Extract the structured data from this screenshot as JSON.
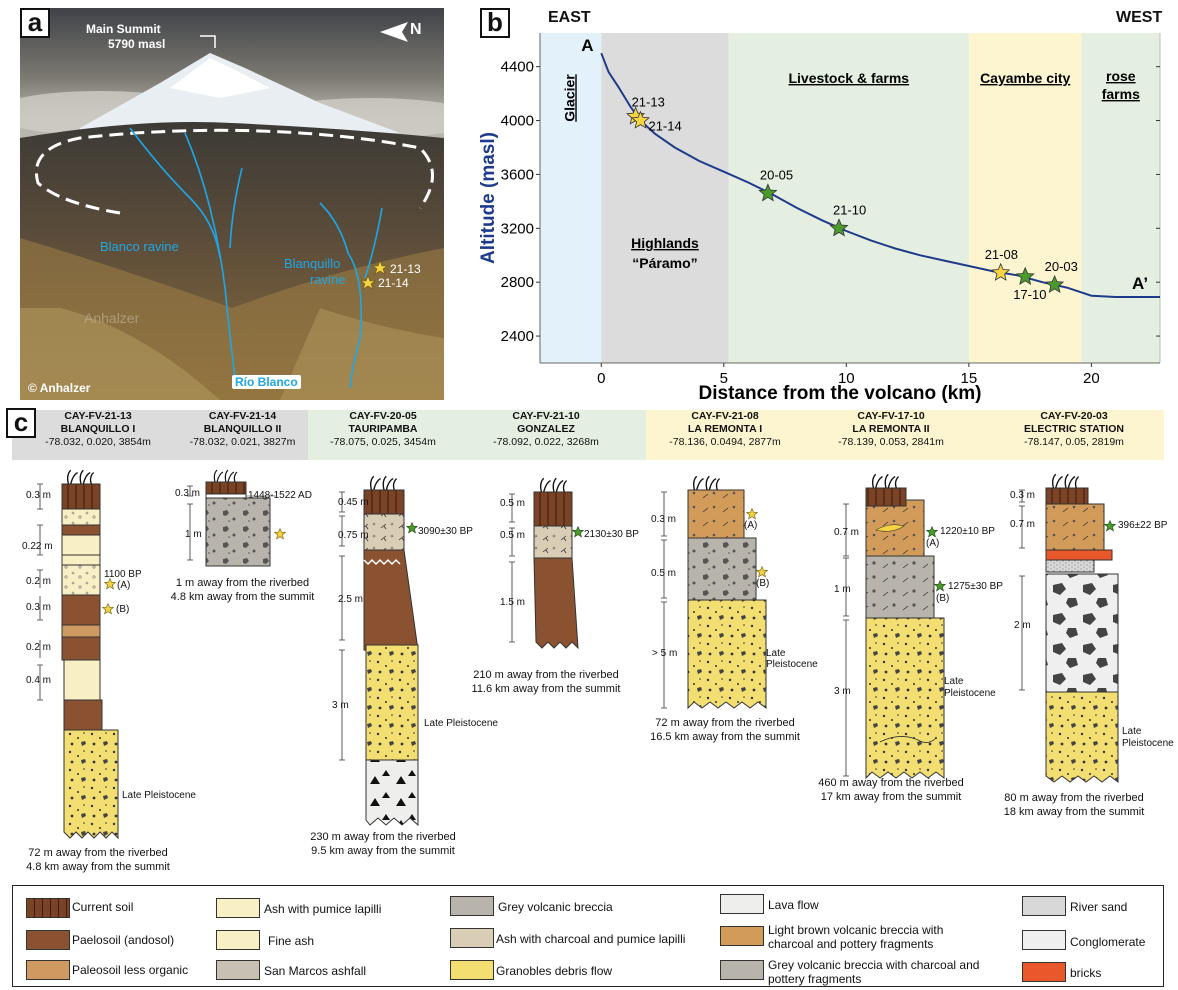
{
  "panel_a": {
    "letter": "a",
    "main_summit_line1": "Main Summit",
    "main_summit_line2": "5790 masl",
    "north": "N",
    "blanco_ravine": "Blanco ravine",
    "blanquillo_line1": "Blanquillo",
    "blanquillo_line2": "ravine",
    "site1": "21-13",
    "site2": "21-14",
    "watermark": "Anhalzer",
    "copyright": "© Anhalzer",
    "river": "Río Blanco"
  },
  "panel_b": {
    "letter": "b",
    "east": "EAST",
    "west": "WEST"
  },
  "chart_data": {
    "type": "line",
    "xlabel": "Distance from the volcano (km)",
    "ylabel": "Altitude (masl)",
    "xlim": [
      -2.5,
      22.8
    ],
    "ylim": [
      2200,
      4650
    ],
    "xticks": [
      0,
      5,
      10,
      15,
      20
    ],
    "yticks": [
      2400,
      2800,
      3200,
      3600,
      4000,
      4400
    ],
    "zones": [
      {
        "label": "Glacier",
        "x0": -2.5,
        "x1": 0,
        "color": "#e3f1fb"
      },
      {
        "label": "Highlands",
        "sublabel": "“Páramo”",
        "x0": 0,
        "x1": 5.2,
        "color": "#dcdcdc"
      },
      {
        "label": "Livestock & farms",
        "x0": 5.2,
        "x1": 15,
        "color": "#e4efe2"
      },
      {
        "label": "Cayambe city",
        "x0": 15,
        "x1": 19.6,
        "color": "#fdf5cf"
      },
      {
        "label": "rose farms",
        "x0": 19.6,
        "x1": 22.8,
        "color": "#e4efe2"
      }
    ],
    "profile": {
      "start_label": "A",
      "end_label": "A’",
      "x": [
        0,
        0.3,
        0.7,
        1.2,
        1.6,
        2.2,
        3,
        4,
        5,
        6,
        7,
        8,
        9,
        10,
        11,
        12,
        13,
        14,
        15,
        16,
        17,
        18,
        19,
        20,
        21,
        22,
        22.8
      ],
      "y": [
        4500,
        4360,
        4250,
        4100,
        4000,
        3900,
        3800,
        3700,
        3620,
        3540,
        3450,
        3350,
        3260,
        3180,
        3110,
        3050,
        3000,
        2960,
        2920,
        2880,
        2850,
        2800,
        2760,
        2700,
        2690,
        2690,
        2690
      ]
    },
    "samples": [
      {
        "label": "21-13",
        "x": 1.4,
        "y": 4030,
        "color": "#f6d441"
      },
      {
        "label": "21-14",
        "x": 1.6,
        "y": 4000,
        "color": "#f6d441"
      },
      {
        "label": "20-05",
        "x": 6.8,
        "y": 3460,
        "color": "#4a9a2e"
      },
      {
        "label": "21-10",
        "x": 9.7,
        "y": 3200,
        "color": "#4a9a2e"
      },
      {
        "label": "21-08",
        "x": 16.3,
        "y": 2870,
        "color": "#f6d441"
      },
      {
        "label": "17-10",
        "x": 17.3,
        "y": 2840,
        "color": "#4a9a2e"
      },
      {
        "label": "20-03",
        "x": 18.5,
        "y": 2780,
        "color": "#4a9a2e"
      }
    ]
  },
  "panel_c": {
    "letter": "c",
    "sections": [
      {
        "id": "CAY-FV-21-13",
        "name": "BLANQUILLO I",
        "coords": "-78.032, 0.020, 3854m",
        "dist1": "72 m away from the riverbed",
        "dist2": "4.8 km away from the summit"
      },
      {
        "id": "CAY-FV-21-14",
        "name": "BLANQUILLO II",
        "coords": "-78.032, 0.021, 3827m",
        "dist1": "1 m away from the riverbed",
        "dist2": "4.8 km away from the summit"
      },
      {
        "id": "CAY-FV-20-05",
        "name": "TAURIPAMBA",
        "coords": "-78.075, 0.025, 3454m",
        "dist1": "230 m away from the riverbed",
        "dist2": "9.5 km away from the summit"
      },
      {
        "id": "CAY-FV-21-10",
        "name": "GONZALEZ",
        "coords": "-78.092, 0.022, 3268m",
        "dist1": "210 m away from the riverbed",
        "dist2": "11.6 km away from the summit"
      },
      {
        "id": "CAY-FV-21-08",
        "name": "LA REMONTA I",
        "coords": "-78.136, 0.0494, 2877m",
        "dist1": "72 m away from the riverbed",
        "dist2": "16.5 km away from the summit"
      },
      {
        "id": "CAY-FV-17-10",
        "name": "LA REMONTA II",
        "coords": "-78.139, 0.053, 2841m",
        "dist1": "460 m away from the riverbed",
        "dist2": "17 km away from the summit"
      },
      {
        "id": "CAY-FV-20-03",
        "name": "ELECTRIC STATION",
        "coords": "-78.147, 0.05, 2819m",
        "dist1": "80 m away from the riverbed",
        "dist2": "18 km away from the summit"
      }
    ],
    "col1": {
      "t1": "0.3 m",
      "t2": "0.22 m",
      "t3": "0.2 m",
      "t4": "0.3 m",
      "t5": "0.2 m",
      "t6": "0.4 m",
      "age": "1100 BP",
      "a": "(A)",
      "b": "(B)",
      "lp": "Late Pleistocene"
    },
    "col2": {
      "t1": "0.3 m",
      "t2": "1 m",
      "age": "1448-1522 AD"
    },
    "col3": {
      "t1": "0.45 m",
      "t2": "0.75 m",
      "t3": "2.5 m",
      "t4": "3 m",
      "age": "3090±30 BP",
      "lp": "Late Pleistocene"
    },
    "col4": {
      "t1": "0.5 m",
      "t2": "0.5 m",
      "t3": "1.5 m",
      "age": "2130±30 BP"
    },
    "col5": {
      "t1": "0.3 m",
      "t2": "0.5 m",
      "t3": "> 5 m",
      "a": "(A)",
      "b": "(B)",
      "lp1": "Late",
      "lp2": "Pleistocene"
    },
    "col6": {
      "t1": "0.7 m",
      "t2": "1 m",
      "t3": "3 m",
      "age1": "1220±10 BP",
      "age2": "1275±30 BP",
      "a": "(A)",
      "b": "(B)",
      "lp1": "Late",
      "lp2": "Pleistocene"
    },
    "col7": {
      "t1": "0.3 m",
      "t2": "0.7 m",
      "t3": "2 m",
      "age": "396±22 BP",
      "lp1": "Late",
      "lp2": "Pleistocene"
    }
  },
  "legend": {
    "items": [
      "Current soil",
      "Paelosoil (andosol)",
      "Paleosoil less organic",
      "Ash with pumice lapilli",
      "Fine ash",
      "San Marcos ashfall",
      "Grey volcanic breccia",
      "Ash with charcoal and pumice lapilli",
      "Granobles debris flow",
      "Lava flow",
      "Light brown volcanic breccia with",
      "charcoal and pottery fragments",
      "Grey volcanic breccia with charcoal and",
      "pottery fragments",
      "River sand",
      "Conglomerate",
      "bricks"
    ]
  },
  "colors": {
    "soil": "#7a4325",
    "paleosoil": "#8a5230",
    "paleosoil_light": "#cf9a62",
    "fine_ash": "#f8efc4",
    "san_marcos": "#c8c0b2",
    "grey_breccia": "#b9b4ab",
    "debris": "#f3de72",
    "light_brown_breccia": "#d39b5a",
    "brick": "#e8582a",
    "profile_line": "#1e3a8a",
    "ravine": "#1ea7e6"
  }
}
